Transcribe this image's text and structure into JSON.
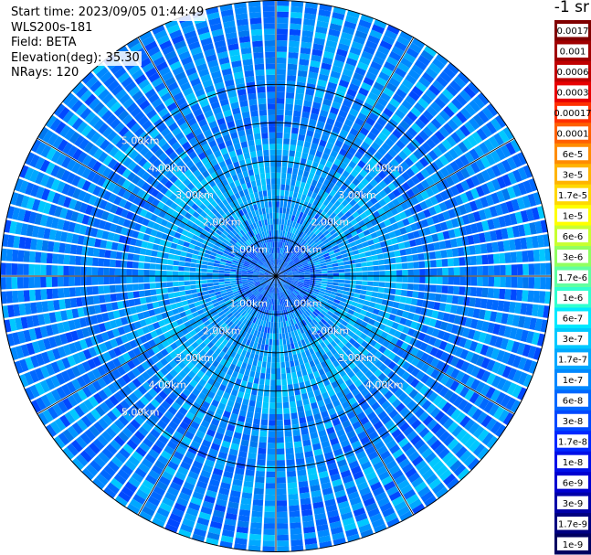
{
  "header": {
    "start_time": "Start time: 2023/09/05 01:44:49",
    "instrument": "WLS200s-181",
    "field": "Field: BETA",
    "elevation": "Elevation(deg): 35.30",
    "nrays": "NRays: 120"
  },
  "colorbar": {
    "unit_label": "-1 sr",
    "labels": [
      "0.0017",
      "0.001",
      "0.0006",
      "0.0003",
      "0.00017",
      "0.0001",
      "6e-5",
      "3e-5",
      "1.7e-5",
      "1e-5",
      "6e-6",
      "3e-6",
      "1.7e-6",
      "1e-6",
      "6e-7",
      "3e-7",
      "1.7e-7",
      "1e-7",
      "6e-8",
      "3e-8",
      "1.7e-8",
      "1e-8",
      "6e-9",
      "3e-9",
      "1.7e-9",
      "1e-9"
    ],
    "colors": [
      "#800000",
      "#a00000",
      "#c00000",
      "#e80000",
      "#ff3000",
      "#ff6000",
      "#ff8c00",
      "#ffb400",
      "#ffd800",
      "#ffff00",
      "#c8ff30",
      "#90ff60",
      "#60ffa0",
      "#30ffd0",
      "#00e8ff",
      "#00c8ff",
      "#00a8ff",
      "#0088ff",
      "#0068ff",
      "#0048ff",
      "#0028ff",
      "#0010e8",
      "#0000d0",
      "#0000a8",
      "#000080",
      "#000060"
    ]
  },
  "chart_data": {
    "type": "heatmap",
    "projection": "polar PPI",
    "field": "BETA",
    "nrays": 120,
    "range_unit": "km",
    "range_rings_km": [
      1,
      2,
      3,
      4,
      5
    ],
    "ring_labels": [
      "1.00km",
      "2.00km",
      "3.00km",
      "4.00km",
      "5.00km"
    ],
    "max_range_km": 7.2,
    "radial_lines_deg": [
      0,
      30,
      60,
      90,
      120,
      150,
      180,
      210,
      240,
      270,
      300,
      330
    ],
    "value_range": [
      1e-09,
      0.0017
    ],
    "dominant_values": "mostly 1e-8 to 1e-7, higher (6e-8 to 3e-7) in a ring around 2–3.5 km"
  }
}
